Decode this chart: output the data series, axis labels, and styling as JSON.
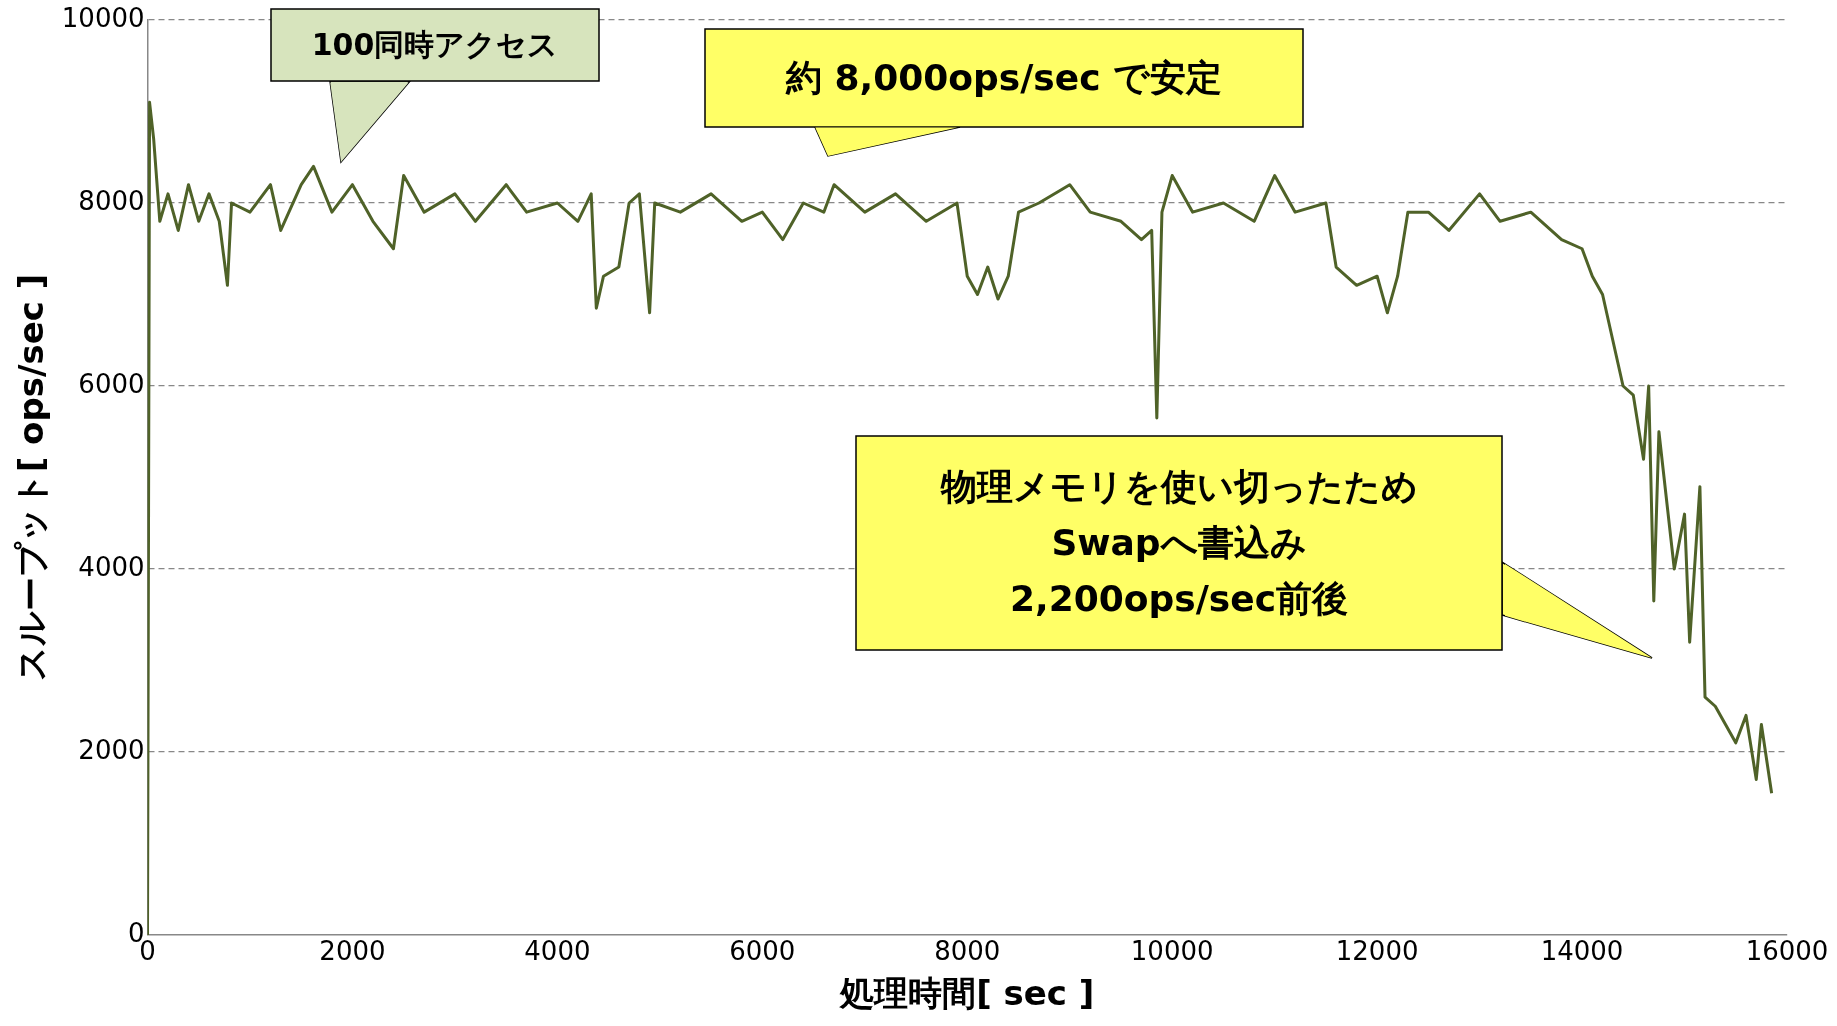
{
  "chart_data": {
    "type": "line",
    "xlabel": "処理時間[ sec ]",
    "ylabel": "スループット[ ops/sec ]",
    "xlim": [
      0,
      16000
    ],
    "xticks": [
      0,
      2000,
      4000,
      6000,
      8000,
      10000,
      12000,
      14000,
      16000
    ],
    "ylim": [
      0,
      10000
    ],
    "yticks": [
      0,
      2000,
      4000,
      6000,
      8000,
      10000
    ],
    "grid": "y",
    "legend": false,
    "marker": "none",
    "line_style": "solid",
    "series": [
      {
        "color": "#4f6228",
        "x": [
          0,
          20,
          60,
          120,
          200,
          300,
          400,
          500,
          600,
          700,
          780,
          820,
          1000,
          1200,
          1300,
          1500,
          1620,
          1800,
          2000,
          2200,
          2400,
          2500,
          2700,
          3000,
          3200,
          3500,
          3700,
          4000,
          4200,
          4330,
          4380,
          4450,
          4600,
          4700,
          4800,
          4900,
          4950,
          5200,
          5500,
          5800,
          6000,
          6200,
          6400,
          6600,
          6700,
          7000,
          7300,
          7600,
          7900,
          8000,
          8100,
          8200,
          8300,
          8400,
          8500,
          8700,
          9000,
          9200,
          9500,
          9700,
          9800,
          9850,
          9900,
          10000,
          10200,
          10500,
          10800,
          11000,
          11200,
          11500,
          11600,
          11800,
          12000,
          12100,
          12200,
          12300,
          12500,
          12700,
          13000,
          13200,
          13500,
          13800,
          14000,
          14100,
          14200,
          14300,
          14400,
          14500,
          14600,
          14650,
          14700,
          14750,
          14900,
          15000,
          15050,
          15150,
          15200,
          15300,
          15400,
          15500,
          15600,
          15700,
          15750,
          15850
        ],
        "values": [
          0,
          9100,
          8700,
          7800,
          8100,
          7700,
          8200,
          7800,
          8100,
          7800,
          7100,
          8000,
          7900,
          8200,
          7700,
          8200,
          8400,
          7900,
          8200,
          7800,
          7500,
          8300,
          7900,
          8100,
          7800,
          8200,
          7900,
          8000,
          7800,
          8100,
          6850,
          7200,
          7300,
          8000,
          8100,
          6800,
          8000,
          7900,
          8100,
          7800,
          7900,
          7600,
          8000,
          7900,
          8200,
          7900,
          8100,
          7800,
          8000,
          7200,
          7000,
          7300,
          6950,
          7200,
          7900,
          8000,
          8200,
          7900,
          7800,
          7600,
          7700,
          5650,
          7900,
          8300,
          7900,
          8000,
          7800,
          8300,
          7900,
          8000,
          7300,
          7100,
          7200,
          6800,
          7200,
          7900,
          7900,
          7700,
          8100,
          7800,
          7900,
          7600,
          7500,
          7200,
          7000,
          6500,
          6000,
          5900,
          5200,
          6000,
          3650,
          5500,
          4000,
          4600,
          3200,
          4900,
          2600,
          2500,
          2300,
          2100,
          2400,
          1700,
          2300,
          1550
        ]
      }
    ],
    "annotations": [
      "100同時アクセス",
      "約 8,000ops/sec で安定",
      "物理メモリを使い切ったため\nSwapへ書込み\n2,200ops/sec前後"
    ]
  }
}
